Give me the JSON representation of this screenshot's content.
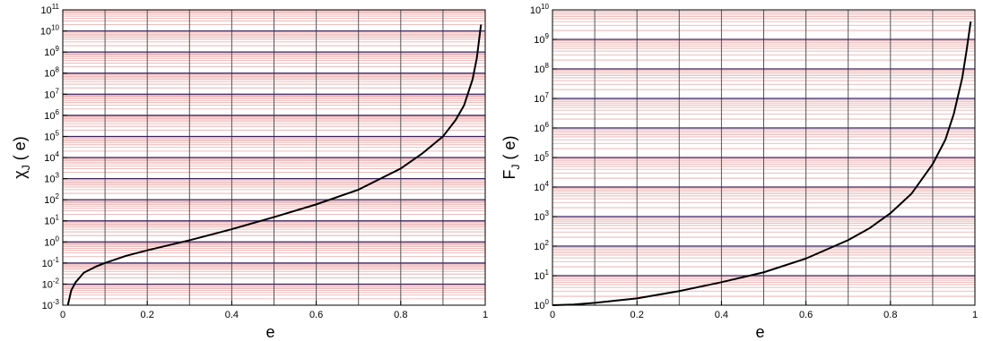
{
  "chart_data": [
    {
      "type": "line",
      "title": "",
      "xlabel": "e",
      "ylabel": {
        "main": "χ",
        "sub": "J",
        "suffix": " ( e)"
      },
      "xlim": [
        0,
        1
      ],
      "ylim": [
        0.001,
        100000000000.0
      ],
      "yscale": "log",
      "grid": true,
      "xticks": [
        "0",
        "0.2",
        "0.4",
        "0.6",
        "0.8",
        "1"
      ],
      "yticks": [
        {
          "base": "10",
          "exp": "-3"
        },
        {
          "base": "10",
          "exp": "-2"
        },
        {
          "base": "10",
          "exp": "-1"
        },
        {
          "base": "10",
          "exp": "0"
        },
        {
          "base": "10",
          "exp": "1"
        },
        {
          "base": "10",
          "exp": "2"
        },
        {
          "base": "10",
          "exp": "3"
        },
        {
          "base": "10",
          "exp": "4"
        },
        {
          "base": "10",
          "exp": "5"
        },
        {
          "base": "10",
          "exp": "6"
        },
        {
          "base": "10",
          "exp": "7"
        },
        {
          "base": "10",
          "exp": "8"
        },
        {
          "base": "10",
          "exp": "9"
        },
        {
          "base": "10",
          "exp": "10"
        },
        {
          "base": "10",
          "exp": "11"
        }
      ],
      "series": [
        {
          "color": "#000000",
          "x": [
            0.012,
            0.02,
            0.03,
            0.05,
            0.08,
            0.1,
            0.15,
            0.2,
            0.3,
            0.4,
            0.5,
            0.6,
            0.7,
            0.8,
            0.85,
            0.9,
            0.93,
            0.95,
            0.97,
            0.98,
            0.99
          ],
          "y": [
            0.001,
            0.005,
            0.012,
            0.035,
            0.07,
            0.1,
            0.22,
            0.4,
            1.2,
            4,
            15,
            60,
            300,
            3000,
            15000,
            100000,
            600000,
            3000000,
            50000000,
            500000000,
            20000000000
          ]
        }
      ]
    },
    {
      "type": "line",
      "title": "",
      "xlabel": "e",
      "ylabel": {
        "main": "F",
        "sub": "J",
        "suffix": " ( e)"
      },
      "xlim": [
        0,
        1
      ],
      "ylim": [
        1,
        10000000000.0
      ],
      "yscale": "log",
      "grid": true,
      "xticks": [
        "0",
        "0.2",
        "0.4",
        "0.6",
        "0.8",
        "1"
      ],
      "yticks": [
        {
          "base": "10",
          "exp": "0"
        },
        {
          "base": "10",
          "exp": "1"
        },
        {
          "base": "10",
          "exp": "2"
        },
        {
          "base": "10",
          "exp": "3"
        },
        {
          "base": "10",
          "exp": "4"
        },
        {
          "base": "10",
          "exp": "5"
        },
        {
          "base": "10",
          "exp": "6"
        },
        {
          "base": "10",
          "exp": "7"
        },
        {
          "base": "10",
          "exp": "8"
        },
        {
          "base": "10",
          "exp": "9"
        },
        {
          "base": "10",
          "exp": "10"
        }
      ],
      "series": [
        {
          "color": "#000000",
          "x": [
            0.0,
            0.05,
            0.1,
            0.2,
            0.3,
            0.4,
            0.5,
            0.6,
            0.7,
            0.75,
            0.8,
            0.85,
            0.9,
            0.93,
            0.95,
            0.97,
            0.98,
            0.99
          ],
          "y": [
            1,
            1.05,
            1.2,
            1.7,
            3,
            6,
            13,
            38,
            160,
            400,
            1300,
            6000,
            60000,
            400000,
            3000000,
            50000000,
            400000000,
            4000000000
          ]
        }
      ]
    }
  ],
  "colors": {
    "major_grid_horizontal": "#3b1f5e",
    "minor_grid_horizontal": "#e8a6a6",
    "grid_vertical": "#555555",
    "curve": "#000000"
  }
}
